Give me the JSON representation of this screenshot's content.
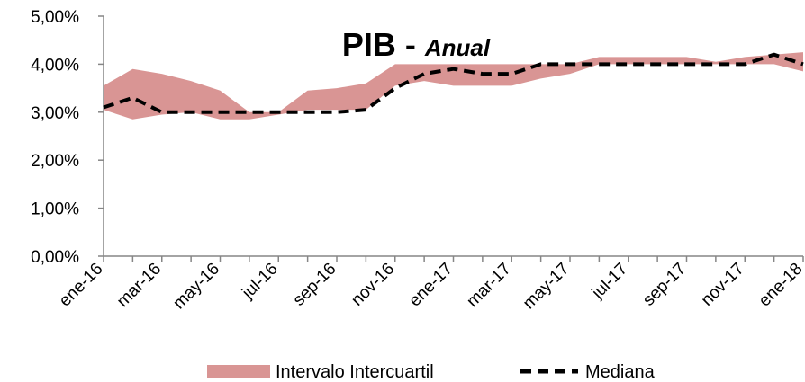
{
  "chart_data": {
    "type": "area",
    "title": "PIB",
    "title_separator": " - ",
    "subtitle": "Anual",
    "xlabel": "",
    "ylabel": "",
    "ylim": [
      0,
      5
    ],
    "y_ticks": [
      "0,00%",
      "1,00%",
      "2,00%",
      "3,00%",
      "4,00%",
      "5,00%"
    ],
    "x_tick_labels": [
      "ene-16",
      "mar-16",
      "may-16",
      "jul-16",
      "sep-16",
      "nov-16",
      "ene-17",
      "mar-17",
      "may-17",
      "jul-17",
      "sep-17",
      "nov-17",
      "ene-18"
    ],
    "x": [
      "ene-16",
      "feb-16",
      "mar-16",
      "abr-16",
      "may-16",
      "jun-16",
      "jul-16",
      "ago-16",
      "sep-16",
      "oct-16",
      "nov-16",
      "dic-16",
      "ene-17",
      "feb-17",
      "mar-17",
      "abr-17",
      "may-17",
      "jun-17",
      "jul-17",
      "ago-17",
      "sep-17",
      "oct-17",
      "nov-17",
      "dic-17",
      "ene-18"
    ],
    "series": [
      {
        "name": "Intervalo Intercuartil",
        "kind": "band",
        "color": "#d99594",
        "lower": [
          3.05,
          2.85,
          2.95,
          3.0,
          2.85,
          2.85,
          2.95,
          3.05,
          3.05,
          3.05,
          3.55,
          3.65,
          3.55,
          3.55,
          3.55,
          3.7,
          3.8,
          4.0,
          4.0,
          4.0,
          4.0,
          4.0,
          4.0,
          4.0,
          3.85
        ],
        "upper": [
          3.55,
          3.9,
          3.8,
          3.65,
          3.45,
          3.0,
          3.0,
          3.45,
          3.5,
          3.6,
          4.0,
          4.0,
          4.0,
          4.0,
          4.0,
          4.0,
          4.0,
          4.15,
          4.15,
          4.15,
          4.15,
          4.05,
          4.15,
          4.2,
          4.25
        ]
      },
      {
        "name": "Mediana",
        "kind": "line",
        "style": "dashed",
        "color": "#000000",
        "values": [
          3.1,
          3.3,
          3.0,
          3.0,
          3.0,
          3.0,
          3.0,
          3.0,
          3.0,
          3.05,
          3.5,
          3.8,
          3.9,
          3.8,
          3.8,
          4.0,
          4.0,
          4.0,
          4.0,
          4.0,
          4.0,
          4.0,
          4.0,
          4.2,
          4.0
        ]
      }
    ],
    "legend_position": "bottom",
    "grid": false
  }
}
